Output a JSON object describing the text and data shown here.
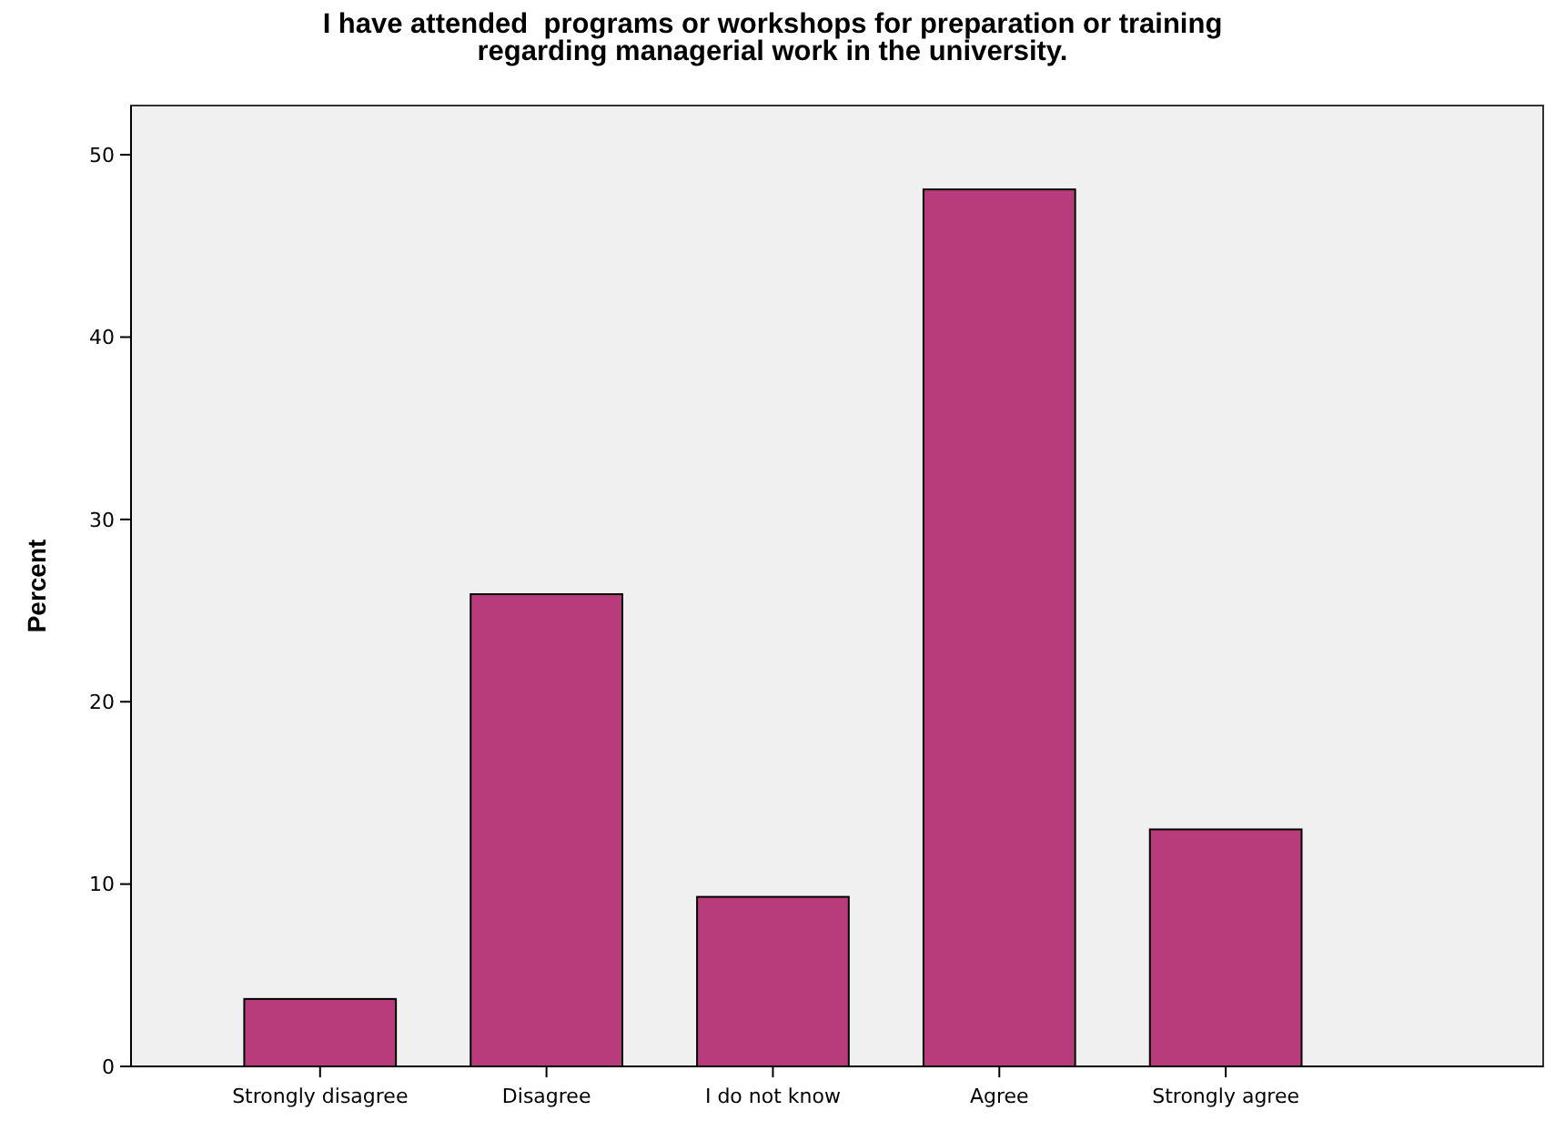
{
  "chart_data": {
    "type": "bar",
    "title": "I have attended  programs or workshops for preparation or training\nregarding managerial work in the university.",
    "ylabel": "Percent",
    "categories": [
      "Strongly disagree",
      "Disagree",
      "I do not know",
      "Agree",
      "Strongly agree"
    ],
    "values": [
      3.7,
      25.9,
      9.3,
      48.1,
      13.0
    ],
    "color": "#b83c7c",
    "ylim": [
      0,
      52.7
    ],
    "yticks": [
      0,
      10,
      20,
      30,
      40,
      50
    ],
    "grid": false
  }
}
